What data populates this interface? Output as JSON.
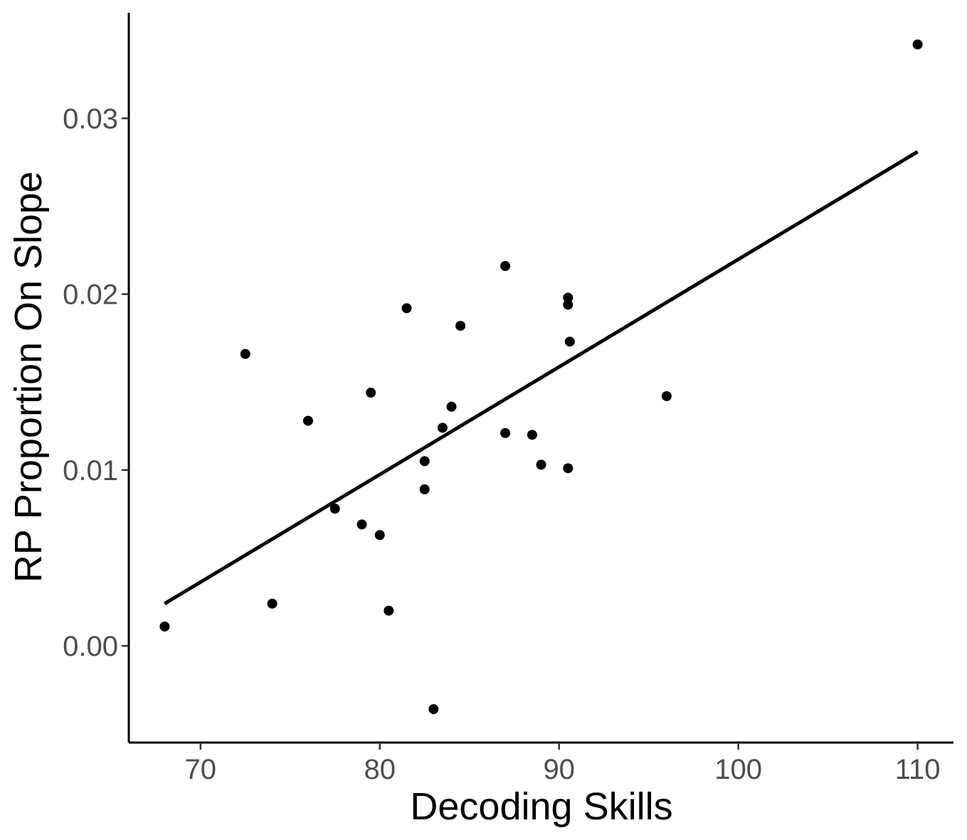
{
  "chart_data": {
    "type": "scatter",
    "title": "",
    "xlabel": "Decoding Skills",
    "ylabel": "RP Proportion On Slope",
    "xlim": [
      66,
      112
    ],
    "ylim": [
      -0.0055,
      0.036
    ],
    "x_ticks": [
      70,
      80,
      90,
      100,
      110
    ],
    "x_tick_labels": [
      "70",
      "80",
      "90",
      "100",
      "110"
    ],
    "y_ticks": [
      0.0,
      0.01,
      0.02,
      0.03
    ],
    "y_tick_labels": [
      "0.00",
      "0.01",
      "0.02",
      "0.03"
    ],
    "grid": false,
    "legend": "none",
    "point_color": "#000000",
    "series": [
      {
        "points": [
          {
            "x": 68.0,
            "y": 0.0011
          },
          {
            "x": 72.5,
            "y": 0.0166
          },
          {
            "x": 74.0,
            "y": 0.0024
          },
          {
            "x": 76.0,
            "y": 0.0128
          },
          {
            "x": 77.5,
            "y": 0.0078
          },
          {
            "x": 79.0,
            "y": 0.0069
          },
          {
            "x": 79.5,
            "y": 0.0144
          },
          {
            "x": 80.0,
            "y": 0.0063
          },
          {
            "x": 80.5,
            "y": 0.002
          },
          {
            "x": 81.5,
            "y": 0.0192
          },
          {
            "x": 82.5,
            "y": 0.0105
          },
          {
            "x": 82.5,
            "y": 0.0089
          },
          {
            "x": 83.0,
            "y": -0.0036
          },
          {
            "x": 83.5,
            "y": 0.0124
          },
          {
            "x": 84.0,
            "y": 0.0136
          },
          {
            "x": 84.5,
            "y": 0.0182
          },
          {
            "x": 87.0,
            "y": 0.0216
          },
          {
            "x": 87.0,
            "y": 0.0121
          },
          {
            "x": 88.5,
            "y": 0.012
          },
          {
            "x": 89.0,
            "y": 0.0103
          },
          {
            "x": 90.5,
            "y": 0.0198
          },
          {
            "x": 90.5,
            "y": 0.0194
          },
          {
            "x": 90.5,
            "y": 0.0101
          },
          {
            "x": 90.6,
            "y": 0.0173
          },
          {
            "x": 96.0,
            "y": 0.0142
          },
          {
            "x": 110.0,
            "y": 0.0342
          }
        ]
      }
    ],
    "fit_line": {
      "x": [
        68.0,
        110.0
      ],
      "y": [
        0.0024,
        0.0281
      ],
      "color": "#000000"
    }
  }
}
